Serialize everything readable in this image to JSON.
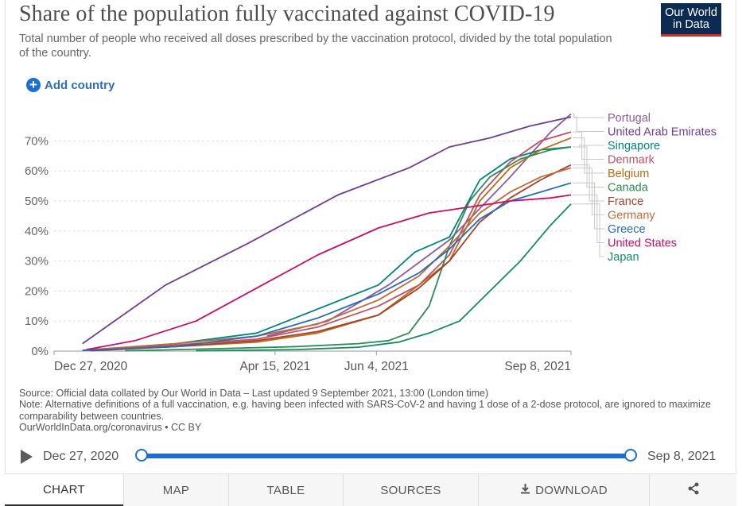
{
  "header": {
    "title": "Share of the population fully vaccinated against COVID-19",
    "subtitle": "Total number of people who received all doses prescribed by the vaccination protocol, divided by the total population of the country.",
    "logo_line1": "Our World",
    "logo_line2": "in Data"
  },
  "controls": {
    "add_country": "Add country",
    "plus_glyph": "+"
  },
  "chart_data": {
    "type": "line",
    "title": "Share of the population fully vaccinated against COVID-19",
    "xlabel": "",
    "ylabel": "",
    "y_ticks": [
      "0%",
      "10%",
      "20%",
      "30%",
      "40%",
      "50%",
      "60%",
      "70%"
    ],
    "y_tick_values": [
      0,
      10,
      20,
      30,
      40,
      50,
      60,
      70
    ],
    "x_ticks": [
      "Dec 27, 2020",
      "Apr 15, 2021",
      "Jun 4, 2021",
      "Sep 8, 2021"
    ],
    "x_tick_days": [
      0,
      109,
      159,
      255
    ],
    "xlim_days": [
      0,
      255
    ],
    "ylim": [
      0,
      78
    ],
    "grid": true,
    "legend_position": "right",
    "series": [
      {
        "name": "Portugal",
        "color": "#8a5a9e",
        "days": [
          105,
          135,
          165,
          195,
          225,
          245,
          255
        ],
        "values": [
          5,
          10,
          22,
          37,
          58,
          73,
          79
        ]
      },
      {
        "name": "United Arab Emirates",
        "color": "#6d3e91",
        "days": [
          14,
          55,
          96,
          140,
          175,
          195,
          215,
          235,
          255
        ],
        "values": [
          2.5,
          22,
          36,
          52,
          61,
          68,
          71,
          75,
          78
        ]
      },
      {
        "name": "Singapore",
        "color": "#00847e",
        "days": [
          20,
          60,
          100,
          130,
          160,
          178,
          195,
          210,
          225,
          240,
          255
        ],
        "values": [
          0.5,
          2.5,
          6,
          14,
          22,
          33,
          38,
          57,
          64,
          67,
          68
        ]
      },
      {
        "name": "Denmark",
        "color": "#c15065",
        "days": [
          18,
          60,
          100,
          130,
          160,
          180,
          195,
          210,
          225,
          240,
          255
        ],
        "values": [
          0.3,
          2,
          4,
          8,
          15,
          22,
          32,
          52,
          63,
          70,
          73
        ]
      },
      {
        "name": "Belgium",
        "color": "#b86e16",
        "days": [
          18,
          60,
          100,
          130,
          160,
          180,
          195,
          210,
          225,
          240,
          255
        ],
        "values": [
          0.2,
          1.5,
          3,
          6,
          12,
          22,
          30,
          50,
          61,
          67,
          71
        ]
      },
      {
        "name": "Canada",
        "color": "#2e8b57",
        "days": [
          35,
          80,
          120,
          150,
          165,
          175,
          185,
          195,
          205,
          215,
          230,
          245,
          255
        ],
        "values": [
          0.1,
          0.8,
          1.5,
          2.5,
          3.5,
          6,
          15,
          35,
          50,
          58,
          64,
          67,
          68
        ]
      },
      {
        "name": "France",
        "color": "#a6402a",
        "days": [
          18,
          60,
          100,
          130,
          160,
          180,
          195,
          210,
          225,
          240,
          255
        ],
        "values": [
          0.1,
          1.5,
          3.5,
          6.5,
          12,
          21,
          30,
          43,
          51,
          57,
          62
        ]
      },
      {
        "name": "Germany",
        "color": "#bf6a3a",
        "days": [
          14,
          60,
          100,
          130,
          160,
          180,
          195,
          210,
          225,
          240,
          255
        ],
        "values": [
          0.3,
          2.5,
          5,
          9,
          17,
          25,
          35,
          46,
          53,
          58,
          61
        ]
      },
      {
        "name": "Greece",
        "color": "#286bbb",
        "days": [
          14,
          60,
          100,
          130,
          160,
          180,
          195,
          210,
          225,
          240,
          255
        ],
        "values": [
          0.2,
          1.5,
          5,
          11,
          19,
          26,
          34,
          44,
          50,
          53,
          56
        ]
      },
      {
        "name": "United States",
        "color": "#ca0e65",
        "days": [
          16,
          40,
          70,
          100,
          130,
          160,
          185,
          205,
          225,
          245,
          255
        ],
        "values": [
          0.5,
          3.5,
          10,
          21,
          32,
          41,
          46,
          48,
          50,
          51,
          52
        ]
      },
      {
        "name": "Japan",
        "color": "#148b5f",
        "days": [
          70,
          120,
          150,
          170,
          185,
          200,
          215,
          230,
          245,
          255
        ],
        "values": [
          0.1,
          0.5,
          1.3,
          3,
          6,
          10,
          20,
          30,
          42,
          49
        ]
      }
    ]
  },
  "footnote": {
    "source": "Source: Official data collated by Our World in Data – Last updated 9 September 2021, 13:00 (London time)",
    "note": "Note: Alternative definitions of a full vaccination, e.g. having been infected with SARS-CoV-2 and having 1 dose of a 2-dose protocol, are ignored to maximize comparability between countries.",
    "link": "OurWorldInData.org/coronavirus • CC BY"
  },
  "timeline": {
    "start": "Dec 27, 2020",
    "end": "Sep 8, 2021"
  },
  "tabs": {
    "chart": "CHART",
    "map": "MAP",
    "table": "TABLE",
    "sources": "SOURCES",
    "download": "DOWNLOAD"
  },
  "icons": {
    "download": "download-icon",
    "share": "share-icon",
    "play": "play-icon"
  }
}
